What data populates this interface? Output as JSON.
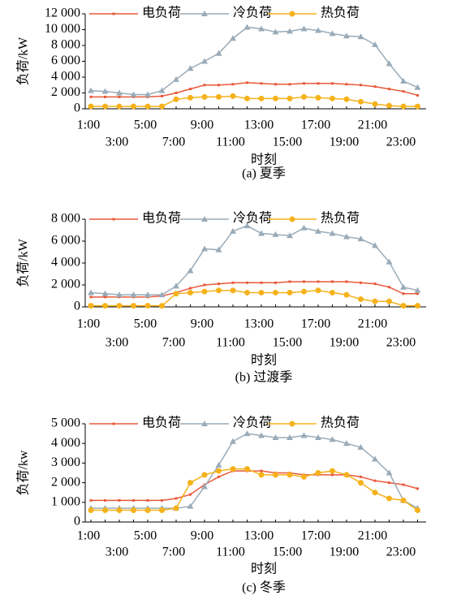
{
  "chart_data": [
    {
      "type": "line",
      "ylabel": "负荷/kW",
      "xlabel": "时刻",
      "caption": "(a) 夏季",
      "categories": [
        "1:00",
        null,
        "3:00",
        null,
        "5:00",
        null,
        "7:00",
        null,
        "9:00",
        null,
        "11:00",
        null,
        "13:00",
        null,
        "15:00",
        null,
        "17:00",
        null,
        "19:00",
        null,
        "21:00",
        null,
        "23:00",
        null
      ],
      "ylim": [
        0,
        12000
      ],
      "yticks": [
        0,
        {
          "value": 2000,
          "label": "2 000"
        },
        {
          "value": 4000,
          "label": "4 000"
        },
        {
          "value": 6000,
          "label": "6 000"
        },
        {
          "value": 8000,
          "label": "8 000"
        },
        {
          "value": 10000,
          "label": "10 000"
        },
        {
          "value": 12000,
          "label": "12 000"
        }
      ],
      "series": [
        {
          "name": "电负荷",
          "color": "#e8593a",
          "values": [
            1500,
            1500,
            1500,
            1500,
            1500,
            1600,
            2000,
            2500,
            3000,
            3000,
            3100,
            3300,
            3200,
            3100,
            3100,
            3200,
            3200,
            3200,
            3100,
            3000,
            2800,
            2500,
            2200,
            1700
          ]
        },
        {
          "name": "冷负荷",
          "color": "#9aabb8",
          "values": [
            2300,
            2200,
            2000,
            1800,
            1800,
            2300,
            3700,
            5100,
            6000,
            7000,
            8900,
            10300,
            10100,
            9700,
            9800,
            10100,
            9900,
            9500,
            9200,
            9100,
            8100,
            5700,
            3500,
            2700
          ]
        },
        {
          "name": "热负荷",
          "color": "#f5b21a",
          "values": [
            300,
            300,
            300,
            300,
            300,
            300,
            1200,
            1400,
            1500,
            1500,
            1600,
            1300,
            1300,
            1300,
            1300,
            1500,
            1400,
            1300,
            1200,
            900,
            600,
            400,
            300,
            300
          ]
        }
      ]
    },
    {
      "type": "line",
      "ylabel": "负荷/kW",
      "xlabel": "时刻",
      "caption": "(b) 过渡季",
      "categories": [
        "1:00",
        null,
        "3:00",
        null,
        "5:00",
        null,
        "7:00",
        null,
        "9:00",
        null,
        "11:00",
        null,
        "13:00",
        null,
        "15:00",
        null,
        "17:00",
        null,
        "19:00",
        null,
        "21:00",
        null,
        "23:00",
        null
      ],
      "ylim": [
        0,
        8000
      ],
      "yticks": [
        0,
        {
          "value": 2000,
          "label": "2 000"
        },
        {
          "value": 4000,
          "label": "4 000"
        },
        {
          "value": 6000,
          "label": "6 000"
        },
        {
          "value": 8000,
          "label": "8 000"
        }
      ],
      "series": [
        {
          "name": "电负荷",
          "color": "#e8593a",
          "values": [
            900,
            900,
            900,
            900,
            900,
            1000,
            1300,
            1700,
            2000,
            2100,
            2200,
            2200,
            2200,
            2200,
            2300,
            2300,
            2300,
            2300,
            2300,
            2200,
            2100,
            1800,
            1200,
            1200
          ]
        },
        {
          "name": "冷负荷",
          "color": "#9aabb8",
          "values": [
            1300,
            1200,
            1100,
            1100,
            1100,
            1100,
            1900,
            3300,
            5300,
            5200,
            6900,
            7400,
            6700,
            6600,
            6500,
            7200,
            6900,
            6700,
            6400,
            6200,
            5600,
            4100,
            1800,
            1500
          ]
        },
        {
          "name": "热负荷",
          "color": "#f5b21a",
          "values": [
            100,
            100,
            100,
            100,
            100,
            100,
            1200,
            1300,
            1400,
            1500,
            1500,
            1300,
            1300,
            1300,
            1300,
            1400,
            1500,
            1300,
            1100,
            700,
            500,
            500,
            100,
            100
          ]
        }
      ]
    },
    {
      "type": "line",
      "ylabel": "负荷/kw",
      "xlabel": "时刻",
      "caption": "(c) 冬季",
      "categories": [
        "1:00",
        null,
        "3:00",
        null,
        "5:00",
        null,
        "7:00",
        null,
        "9:00",
        null,
        "11:00",
        null,
        "13:00",
        null,
        "15:00",
        null,
        "17:00",
        null,
        "19:00",
        null,
        "21:00",
        null,
        "23:00",
        null
      ],
      "ylim": [
        0,
        5000
      ],
      "yticks": [
        0,
        {
          "value": 1000,
          "label": "1 000"
        },
        {
          "value": 2000,
          "label": "2 000"
        },
        {
          "value": 3000,
          "label": "3 000"
        },
        {
          "value": 4000,
          "label": "4 000"
        },
        {
          "value": 5000,
          "label": "5 000"
        }
      ],
      "series": [
        {
          "name": "电负荷",
          "color": "#e8593a",
          "values": [
            1100,
            1100,
            1100,
            1100,
            1100,
            1100,
            1200,
            1400,
            1900,
            2300,
            2600,
            2600,
            2600,
            2500,
            2500,
            2400,
            2400,
            2400,
            2400,
            2300,
            2100,
            2000,
            1900,
            1700
          ]
        },
        {
          "name": "冷负荷",
          "color": "#9aabb8",
          "values": [
            700,
            700,
            700,
            700,
            700,
            700,
            700,
            800,
            1800,
            2900,
            4100,
            4500,
            4400,
            4300,
            4300,
            4400,
            4300,
            4200,
            4000,
            3800,
            3200,
            2500,
            1100,
            700
          ]
        },
        {
          "name": "热负荷",
          "color": "#f5b21a",
          "values": [
            600,
            600,
            600,
            600,
            600,
            600,
            700,
            2000,
            2400,
            2600,
            2700,
            2700,
            2400,
            2400,
            2400,
            2300,
            2500,
            2600,
            2400,
            2000,
            1500,
            1200,
            1100,
            600
          ]
        }
      ]
    }
  ]
}
